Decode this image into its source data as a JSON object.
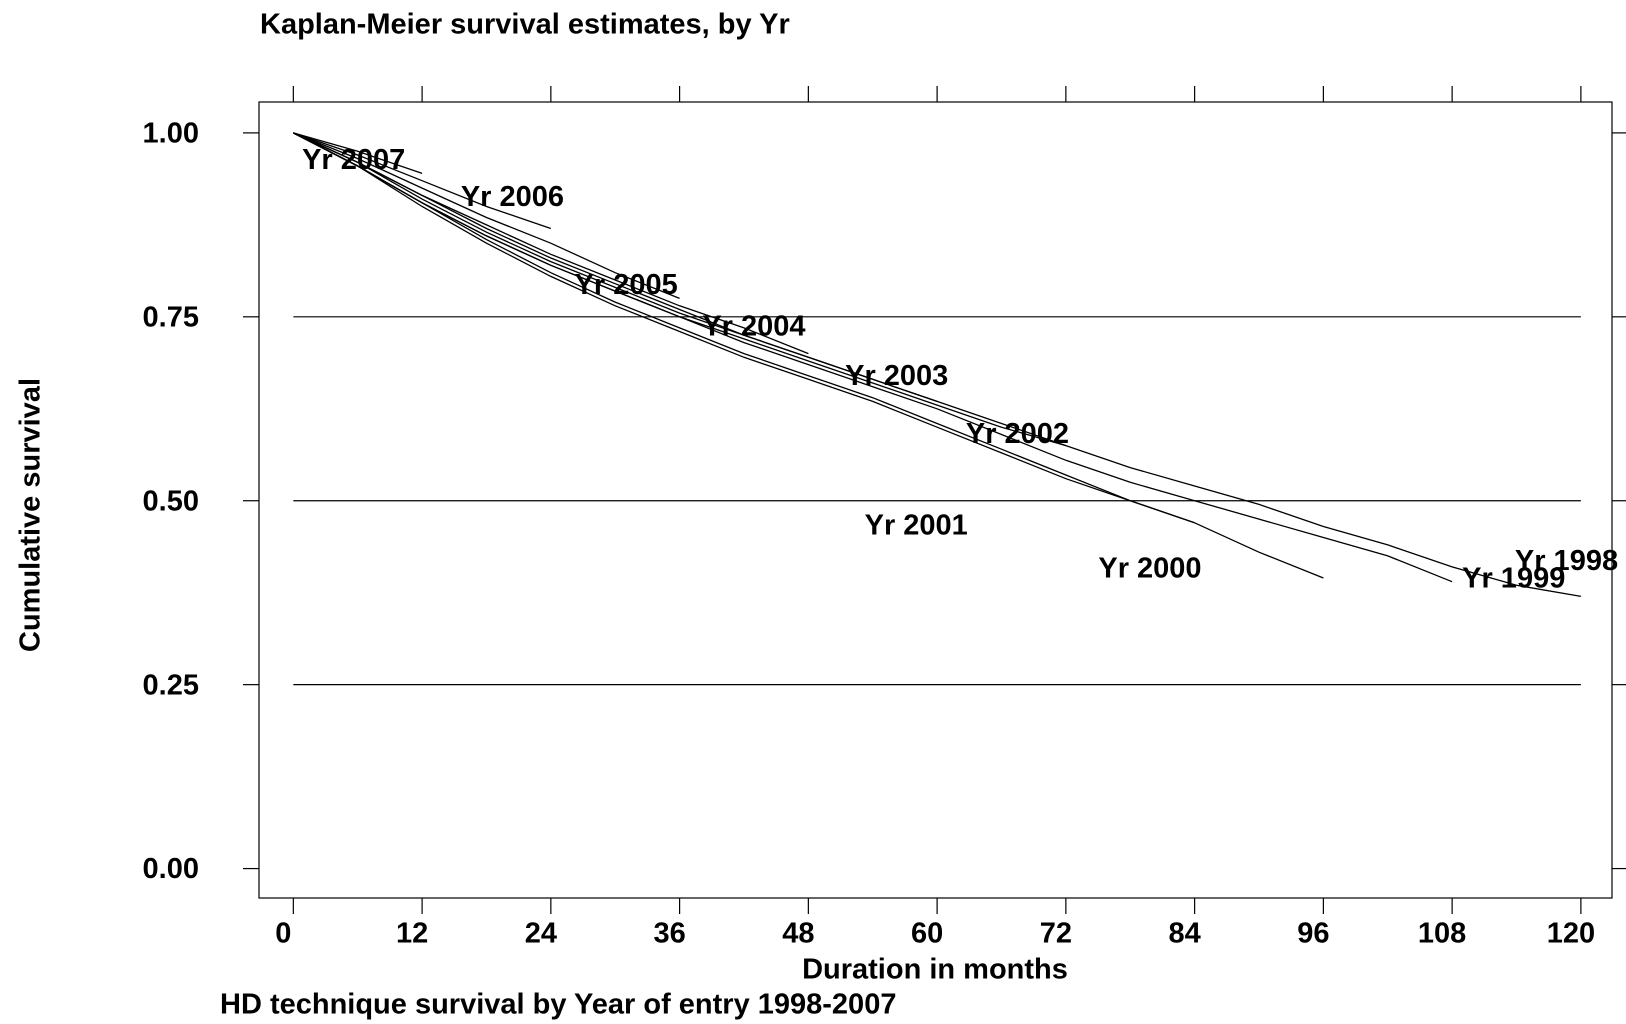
{
  "chart_data": {
    "type": "line",
    "title": "Kaplan-Meier survival estimates, by Yr",
    "x_label": "Duration in months",
    "y_label": "Cumulative survival",
    "note": "HD technique survival by Year of entry 1998-2007",
    "x": [
      0,
      6,
      12,
      18,
      24,
      30,
      36,
      42,
      48,
      54,
      60,
      66,
      72,
      78,
      84,
      90,
      96,
      102,
      108,
      114,
      120
    ],
    "xlim": [
      -3.2,
      122.9
    ],
    "ylim": [
      -0.04,
      1.042
    ],
    "xticks": [
      0,
      12,
      24,
      36,
      48,
      60,
      72,
      84,
      96,
      108,
      120
    ],
    "yticks": [
      {
        "value": 0,
        "label": "0.00"
      },
      {
        "value": 0.25,
        "label": "0.25"
      },
      {
        "value": 0.5,
        "label": "0.50"
      },
      {
        "value": 0.75,
        "label": "0.75"
      },
      {
        "value": 1,
        "label": "1.00"
      }
    ],
    "grid": true,
    "series": [
      {
        "name": "Yr 1998",
        "color": "#000000",
        "values": [
          1,
          0.96,
          0.915,
          0.87,
          0.83,
          0.795,
          0.76,
          0.725,
          0.695,
          0.665,
          0.635,
          0.605,
          0.575,
          0.545,
          0.52,
          0.495,
          0.465,
          0.44,
          0.41,
          0.385,
          0.37
        ]
      },
      {
        "name": "Yr 1999",
        "color": "#000000",
        "values": [
          1,
          0.955,
          0.905,
          0.86,
          0.82,
          0.785,
          0.75,
          0.715,
          0.685,
          0.655,
          0.625,
          0.59,
          0.555,
          0.525,
          0.5,
          0.475,
          0.45,
          0.425,
          0.39,
          null,
          null
        ]
      },
      {
        "name": "Yr 2000",
        "color": "#000000",
        "values": [
          1,
          0.955,
          0.905,
          0.855,
          0.81,
          0.77,
          0.735,
          0.7,
          0.67,
          0.64,
          0.605,
          0.57,
          0.535,
          0.5,
          0.47,
          0.43,
          0.395,
          null,
          null,
          null,
          null
        ]
      },
      {
        "name": "Yr 2001",
        "color": "#000000",
        "values": [
          1,
          0.955,
          0.9,
          0.85,
          0.805,
          0.765,
          0.73,
          0.695,
          0.665,
          0.635,
          0.6,
          0.565,
          0.53,
          0.5,
          0.47,
          null,
          null,
          null,
          null,
          null,
          null
        ]
      },
      {
        "name": "Yr 2002",
        "color": "#000000",
        "values": [
          1,
          0.955,
          0.905,
          0.86,
          0.82,
          0.785,
          0.75,
          0.72,
          0.69,
          0.66,
          0.63,
          0.6,
          0.575,
          null,
          null,
          null,
          null,
          null,
          null,
          null,
          null
        ]
      },
      {
        "name": "Yr 2003",
        "color": "#000000",
        "values": [
          1,
          0.96,
          0.91,
          0.865,
          0.825,
          0.79,
          0.755,
          0.725,
          0.695,
          0.665,
          0.635,
          null,
          null,
          null,
          null,
          null,
          null,
          null,
          null,
          null,
          null
        ]
      },
      {
        "name": "Yr 2004",
        "color": "#000000",
        "values": [
          1,
          0.96,
          0.915,
          0.875,
          0.835,
          0.8,
          0.765,
          0.735,
          0.7,
          null,
          null,
          null,
          null,
          null,
          null,
          null,
          null,
          null,
          null,
          null,
          null
        ]
      },
      {
        "name": "Yr 2005",
        "color": "#000000",
        "values": [
          1,
          0.965,
          0.925,
          0.885,
          0.85,
          0.81,
          0.775,
          null,
          null,
          null,
          null,
          null,
          null,
          null,
          null,
          null,
          null,
          null,
          null,
          null,
          null
        ]
      },
      {
        "name": "Yr 2006",
        "color": "#000000",
        "values": [
          1,
          0.97,
          0.935,
          0.9,
          0.87,
          null,
          null,
          null,
          null,
          null,
          null,
          null,
          null,
          null,
          null,
          null,
          null,
          null,
          null,
          null,
          null
        ]
      },
      {
        "name": "Yr 2007",
        "color": "#000000",
        "values": [
          1,
          0.975,
          0.945,
          null,
          null,
          null,
          null,
          null,
          null,
          null,
          null,
          null,
          null,
          null,
          null,
          null,
          null,
          null,
          null,
          null,
          null
        ]
      }
    ]
  }
}
